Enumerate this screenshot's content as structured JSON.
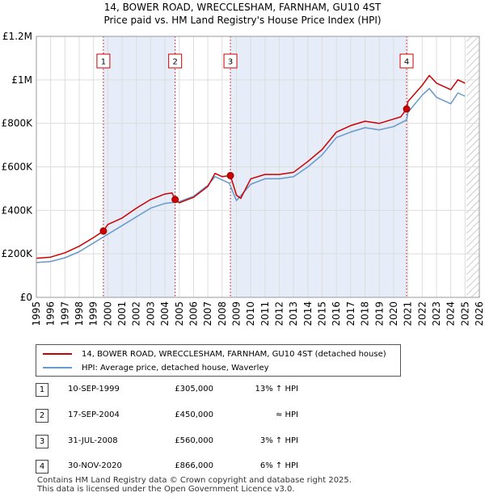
{
  "header": {
    "title_line1": "14, BOWER ROAD, WRECCLESHAM, FARNHAM, GU10 4ST",
    "title_line2": "Price paid vs. HM Land Registry's House Price Index (HPI)"
  },
  "chart_data": {
    "type": "line",
    "xlim": [
      1995,
      2026
    ],
    "ylim": [
      0,
      1200000
    ],
    "y_ticks": [
      {
        "value": 0,
        "label": "£0"
      },
      {
        "value": 200000,
        "label": "£200K"
      },
      {
        "value": 400000,
        "label": "£400K"
      },
      {
        "value": 600000,
        "label": "£600K"
      },
      {
        "value": 800000,
        "label": "£800K"
      },
      {
        "value": 1000000,
        "label": "£1M"
      },
      {
        "value": 1200000,
        "label": "£1.2M"
      }
    ],
    "x_ticks": [
      "1995",
      "1996",
      "1997",
      "1998",
      "1999",
      "2000",
      "2001",
      "2002",
      "2003",
      "2004",
      "2005",
      "2006",
      "2007",
      "2008",
      "2009",
      "2010",
      "2011",
      "2012",
      "2013",
      "2014",
      "2015",
      "2016",
      "2017",
      "2018",
      "2019",
      "2020",
      "2021",
      "2022",
      "2023",
      "2024",
      "2025",
      "2026"
    ],
    "shaded_periods": [
      [
        1999.69,
        2004.71
      ],
      [
        2008.58,
        2020.91
      ]
    ],
    "future_hatch_from": 2025.1,
    "series": [
      {
        "name": "14, BOWER ROAD, WRECCLESHAM, FARNHAM, GU10 4ST (detached house)",
        "color": "#cc0000",
        "points": [
          [
            1995,
            180000
          ],
          [
            1996,
            185000
          ],
          [
            1997,
            205000
          ],
          [
            1998,
            235000
          ],
          [
            1999,
            275000
          ],
          [
            1999.69,
            305000
          ],
          [
            2000,
            335000
          ],
          [
            2001,
            365000
          ],
          [
            2002,
            410000
          ],
          [
            2003,
            450000
          ],
          [
            2004,
            475000
          ],
          [
            2004.5,
            480000
          ],
          [
            2004.71,
            450000
          ],
          [
            2005,
            435000
          ],
          [
            2006,
            460000
          ],
          [
            2007,
            510000
          ],
          [
            2007.5,
            570000
          ],
          [
            2008,
            555000
          ],
          [
            2008.58,
            560000
          ],
          [
            2009,
            470000
          ],
          [
            2009.3,
            455000
          ],
          [
            2010,
            545000
          ],
          [
            2011,
            565000
          ],
          [
            2012,
            565000
          ],
          [
            2013,
            575000
          ],
          [
            2014,
            625000
          ],
          [
            2015,
            680000
          ],
          [
            2016,
            760000
          ],
          [
            2017,
            790000
          ],
          [
            2018,
            810000
          ],
          [
            2019,
            800000
          ],
          [
            2020,
            820000
          ],
          [
            2020.5,
            830000
          ],
          [
            2020.91,
            866000
          ],
          [
            2021,
            900000
          ],
          [
            2022,
            975000
          ],
          [
            2022.5,
            1020000
          ],
          [
            2023,
            985000
          ],
          [
            2023.5,
            970000
          ],
          [
            2024,
            955000
          ],
          [
            2024.5,
            1000000
          ],
          [
            2025,
            985000
          ]
        ]
      },
      {
        "name": "HPI: Average price, detached house, Waverley",
        "color": "#6699cc",
        "points": [
          [
            1995,
            160000
          ],
          [
            1996,
            165000
          ],
          [
            1997,
            182000
          ],
          [
            1998,
            210000
          ],
          [
            1999,
            250000
          ],
          [
            2000,
            290000
          ],
          [
            2001,
            330000
          ],
          [
            2002,
            370000
          ],
          [
            2003,
            410000
          ],
          [
            2004,
            432000
          ],
          [
            2005,
            440000
          ],
          [
            2006,
            465000
          ],
          [
            2007,
            515000
          ],
          [
            2007.5,
            555000
          ],
          [
            2008,
            540000
          ],
          [
            2008.5,
            525000
          ],
          [
            2009,
            445000
          ],
          [
            2010,
            520000
          ],
          [
            2011,
            545000
          ],
          [
            2012,
            545000
          ],
          [
            2013,
            555000
          ],
          [
            2014,
            600000
          ],
          [
            2015,
            655000
          ],
          [
            2016,
            735000
          ],
          [
            2017,
            760000
          ],
          [
            2018,
            780000
          ],
          [
            2019,
            770000
          ],
          [
            2020,
            785000
          ],
          [
            2020.9,
            815000
          ],
          [
            2021,
            850000
          ],
          [
            2022,
            930000
          ],
          [
            2022.5,
            960000
          ],
          [
            2023,
            920000
          ],
          [
            2023.5,
            905000
          ],
          [
            2024,
            890000
          ],
          [
            2024.5,
            940000
          ],
          [
            2025,
            925000
          ]
        ]
      }
    ],
    "markers": [
      {
        "label": "1",
        "x": 1999.69,
        "y": 305000
      },
      {
        "label": "2",
        "x": 2004.71,
        "y": 450000
      },
      {
        "label": "3",
        "x": 2008.58,
        "y": 560000
      },
      {
        "label": "4",
        "x": 2020.91,
        "y": 866000
      }
    ]
  },
  "legend": {
    "property_label": "14, BOWER ROAD, WRECCLESHAM, FARNHAM, GU10 4ST (detached house)",
    "hpi_label": "HPI: Average price, detached house, Waverley",
    "property_color": "#cc0000",
    "hpi_color": "#6699cc"
  },
  "transactions": [
    {
      "num": "1",
      "date": "10-SEP-1999",
      "price": "£305,000",
      "hpi": "13% ↑ HPI"
    },
    {
      "num": "2",
      "date": "17-SEP-2004",
      "price": "£450,000",
      "hpi": "≈ HPI"
    },
    {
      "num": "3",
      "date": "31-JUL-2008",
      "price": "£560,000",
      "hpi": "3% ↑ HPI"
    },
    {
      "num": "4",
      "date": "30-NOV-2020",
      "price": "£866,000",
      "hpi": "6% ↑ HPI"
    }
  ],
  "footer": {
    "line1": "Contains HM Land Registry data © Crown copyright and database right 2025.",
    "line2": "This data is licensed under the Open Government Licence v3.0."
  }
}
